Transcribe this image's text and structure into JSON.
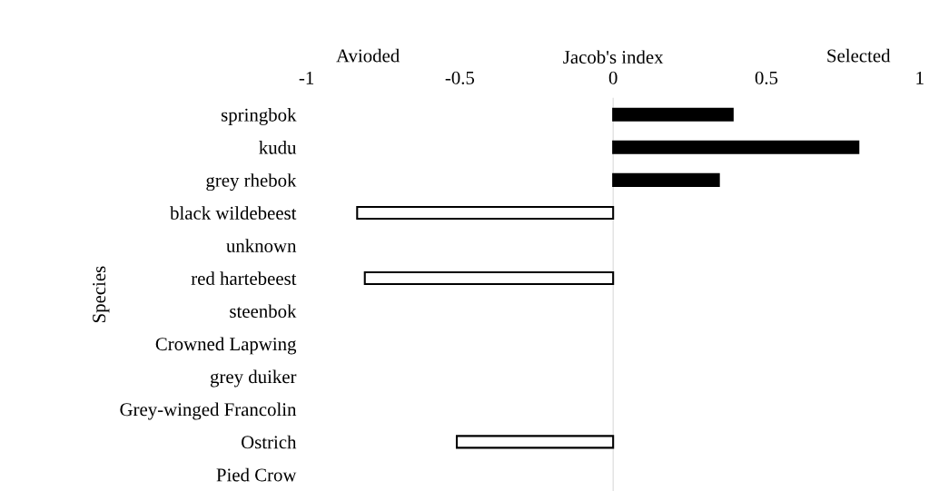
{
  "chart_data": {
    "type": "bar",
    "orientation": "horizontal",
    "xlabel": "Jacob's index",
    "ylabel": "Species",
    "annotations": [
      "Avioded",
      "Selected"
    ],
    "categories": [
      "springbok",
      "kudu",
      "grey rhebok",
      "black wildebeest",
      "unknown",
      "red hartebeest",
      "steenbok",
      "Crowned Lapwing",
      "grey duiker",
      "Grey-winged Francolin",
      "Ostrich",
      "Pied Crow"
    ],
    "values": [
      0.39,
      0.8,
      0.345,
      -0.835,
      null,
      -0.81,
      null,
      null,
      null,
      null,
      -0.51,
      null
    ],
    "colors": [
      "#000000",
      "#000000",
      "#000000",
      "#ffffff",
      "#ffffff",
      "#ffffff",
      "#ffffff",
      "#ffffff",
      "#ffffff",
      "#ffffff",
      "#ffffff",
      "#ffffff"
    ],
    "xlim": [
      -1,
      1
    ],
    "xticks": [
      -1,
      -0.5,
      0,
      0.5,
      1
    ],
    "legend": false
  }
}
